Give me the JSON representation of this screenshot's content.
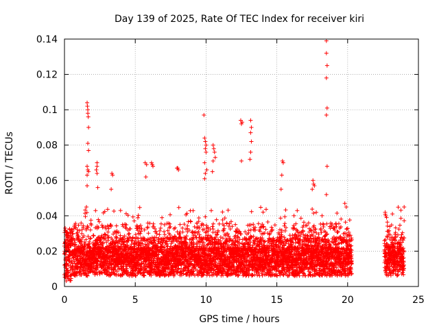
{
  "chart_data": {
    "type": "scatter",
    "title": "Day 139 of 2025, Rate Of TEC Index for receiver kiri",
    "xlabel": "GPS time / hours",
    "ylabel": "ROTI / TECUs",
    "xlim": [
      0,
      25
    ],
    "ylim": [
      0,
      0.14
    ],
    "xticks": [
      0,
      5,
      10,
      15,
      20,
      25
    ],
    "xtick_labels": [
      "0",
      "5",
      "10",
      "15",
      "20",
      "25"
    ],
    "yticks": [
      0,
      0.02,
      0.04,
      0.06,
      0.08,
      0.1,
      0.12,
      0.14
    ],
    "ytick_labels": [
      "0",
      "0.02",
      "0.04",
      "0.06",
      "0.08",
      "0.1",
      "0.12",
      "0.14"
    ],
    "grid": true,
    "marker": "+",
    "series": [
      {
        "name": "ROTI",
        "color": "#ff0000",
        "coverage_hours": [
          [
            0.0,
            20.3
          ],
          [
            22.6,
            24.0
          ]
        ],
        "points": [
          [
            0.05,
            0.033
          ],
          [
            0.1,
            0.021
          ],
          [
            0.1,
            0.006
          ],
          [
            0.15,
            0.015
          ],
          [
            0.2,
            0.029
          ],
          [
            1.6,
            0.104
          ],
          [
            1.62,
            0.102
          ],
          [
            1.65,
            0.1
          ],
          [
            1.65,
            0.098
          ],
          [
            1.68,
            0.096
          ],
          [
            1.7,
            0.09
          ],
          [
            1.65,
            0.081
          ],
          [
            1.7,
            0.077
          ],
          [
            1.6,
            0.068
          ],
          [
            1.65,
            0.066
          ],
          [
            1.7,
            0.065
          ],
          [
            1.6,
            0.063
          ],
          [
            1.6,
            0.057
          ],
          [
            1.55,
            0.045
          ],
          [
            2.3,
            0.07
          ],
          [
            2.3,
            0.068
          ],
          [
            2.25,
            0.066
          ],
          [
            2.3,
            0.064
          ],
          [
            2.35,
            0.056
          ],
          [
            3.35,
            0.064
          ],
          [
            3.4,
            0.063
          ],
          [
            3.3,
            0.055
          ],
          [
            5.7,
            0.07
          ],
          [
            5.8,
            0.069
          ],
          [
            5.75,
            0.062
          ],
          [
            6.15,
            0.07
          ],
          [
            6.2,
            0.069
          ],
          [
            6.25,
            0.068
          ],
          [
            7.95,
            0.067
          ],
          [
            8.0,
            0.067
          ],
          [
            8.05,
            0.066
          ],
          [
            9.85,
            0.097
          ],
          [
            9.9,
            0.084
          ],
          [
            9.95,
            0.082
          ],
          [
            10.0,
            0.08
          ],
          [
            9.95,
            0.078
          ],
          [
            10.0,
            0.076
          ],
          [
            9.9,
            0.07
          ],
          [
            10.05,
            0.066
          ],
          [
            9.95,
            0.064
          ],
          [
            9.9,
            0.061
          ],
          [
            10.5,
            0.08
          ],
          [
            10.55,
            0.078
          ],
          [
            10.6,
            0.076
          ],
          [
            10.65,
            0.073
          ],
          [
            10.5,
            0.071
          ],
          [
            10.45,
            0.065
          ],
          [
            12.45,
            0.094
          ],
          [
            12.5,
            0.092
          ],
          [
            12.55,
            0.093
          ],
          [
            12.5,
            0.071
          ],
          [
            13.15,
            0.094
          ],
          [
            13.2,
            0.09
          ],
          [
            13.15,
            0.087
          ],
          [
            13.2,
            0.082
          ],
          [
            13.15,
            0.076
          ],
          [
            13.1,
            0.072
          ],
          [
            15.4,
            0.071
          ],
          [
            15.45,
            0.07
          ],
          [
            15.35,
            0.063
          ],
          [
            15.3,
            0.055
          ],
          [
            17.55,
            0.06
          ],
          [
            17.6,
            0.058
          ],
          [
            17.65,
            0.057
          ],
          [
            17.5,
            0.055
          ],
          [
            18.5,
            0.139
          ],
          [
            18.5,
            0.132
          ],
          [
            18.55,
            0.125
          ],
          [
            18.5,
            0.118
          ],
          [
            18.55,
            0.101
          ],
          [
            18.5,
            0.097
          ],
          [
            18.55,
            0.068
          ],
          [
            18.5,
            0.052
          ],
          [
            19.8,
            0.047
          ],
          [
            19.9,
            0.045
          ],
          [
            22.65,
            0.042
          ],
          [
            22.7,
            0.04
          ],
          [
            22.75,
            0.039
          ]
        ]
      }
    ]
  }
}
